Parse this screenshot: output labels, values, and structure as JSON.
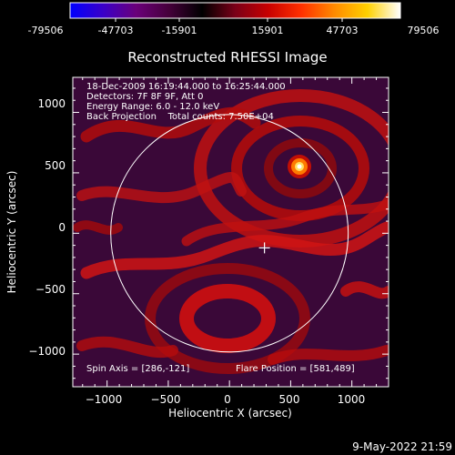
{
  "colorbar": {
    "ticks": [
      "-79506",
      "-47703",
      "-15901",
      "15901",
      "47703",
      "79506"
    ],
    "gradient": [
      "#0000ff",
      "#3a00c8",
      "#6a007a",
      "#45003a",
      "#000000",
      "#7a0018",
      "#c80000",
      "#ff3000",
      "#ff8a00",
      "#ffd000",
      "#ffffff"
    ]
  },
  "plot": {
    "title": "Reconstructed RHESSI Image",
    "xlabel": "Heliocentric X (arcsec)",
    "ylabel": "Heliocentric Y (arcsec)",
    "xticks": [
      "−1000",
      "−500",
      "0",
      "500",
      "1000"
    ],
    "yticks": [
      "1000",
      "500",
      "0",
      "−500",
      "−1000"
    ],
    "xticks_values": [
      -1000,
      -500,
      0,
      500,
      1000
    ],
    "yticks_values": [
      1000,
      500,
      0,
      -500,
      -1000
    ],
    "xrange": [
      -1280,
      1300
    ],
    "yrange": [
      -1270,
      1290
    ],
    "sun_radius_arcsec": 970,
    "info_lines": [
      "18-Dec-2009 16:19:44.000 to 16:25:44.000",
      "Detectors: 7F 8F 9F, Att 0",
      "Energy Range: 6.0 - 12.0 keV",
      "Back Projection    Total counts: 7.50E+04"
    ],
    "spin_axis": "Spin Axis = [286,-121]",
    "flare_position": "Flare Position = [581,489]",
    "spin_axis_xy": [
      286,
      -121
    ],
    "flare_xy": [
      581,
      489
    ]
  },
  "timestamp": "9-May-2022 21:59"
}
